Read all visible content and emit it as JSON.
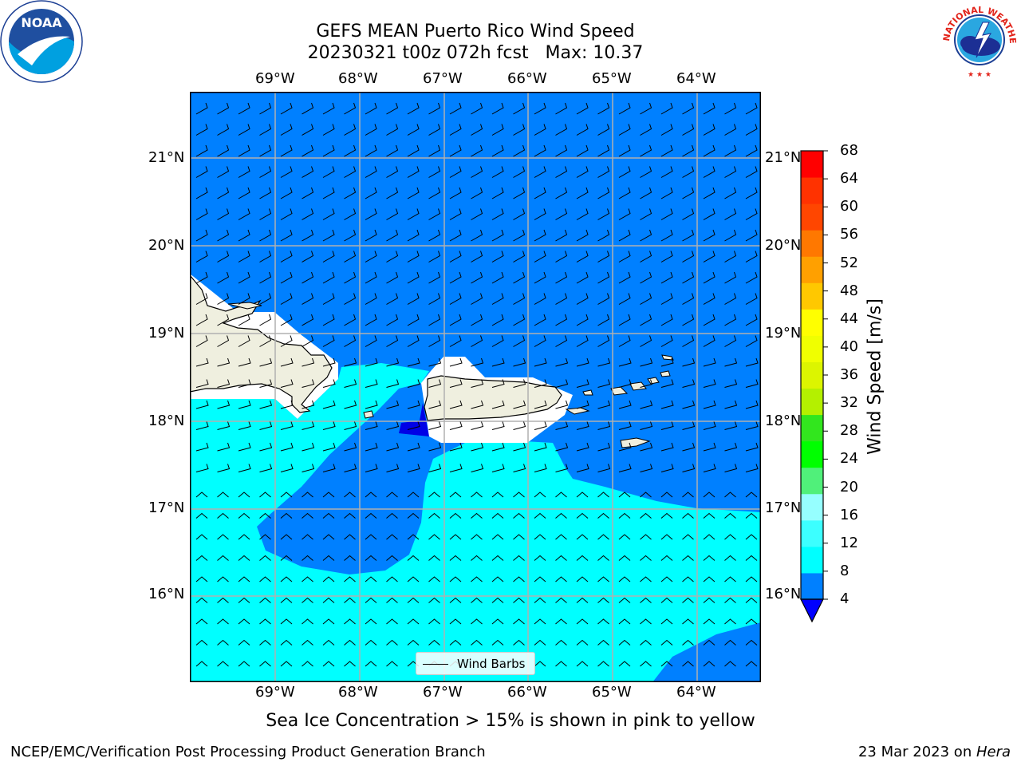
{
  "header": {
    "title_line1": "GEFS MEAN Puerto Rico Wind Speed",
    "title_line2": "20230321 t00z 072h fcst   Max: 10.37"
  },
  "logos": {
    "left": "noara-logo",
    "right": "nws-logo",
    "nws_ring_text": "NATIONAL WEATHER SERVICE"
  },
  "map": {
    "lon_ticks": [
      "69°W",
      "68°W",
      "67°W",
      "66°W",
      "65°W",
      "64°W"
    ],
    "lat_ticks": [
      "21°N",
      "20°N",
      "19°N",
      "18°N",
      "17°N",
      "16°N"
    ],
    "colors": {
      "ocean_low": "#0080ff",
      "ocean_mid": "#00ffff",
      "ocean_min": "#0000e6",
      "land": "#efefdf"
    },
    "legend_label": "Wind Barbs"
  },
  "colorbar": {
    "label": "Wind Speed [m/s]",
    "ticks": [
      "68",
      "64",
      "60",
      "56",
      "52",
      "48",
      "44",
      "40",
      "36",
      "32",
      "28",
      "24",
      "20",
      "16",
      "12",
      "8",
      "4"
    ],
    "colors": [
      "#0000ff",
      "#0080ff",
      "#00ffff",
      "#3cffff",
      "#96ffff",
      "#50f07a",
      "#00ff00",
      "#32e61e",
      "#b4f000",
      "#dcf500",
      "#f0ff00",
      "#ffff00",
      "#ffc800",
      "#ffa000",
      "#ff7800",
      "#ff4600",
      "#ff3200",
      "#ff0000"
    ]
  },
  "notes": {
    "sea_ice": "Sea Ice Concentration > 15% is shown in pink to yellow"
  },
  "footer": {
    "branch": "NCEP/EMC/Verification Post Processing Product Generation Branch",
    "date": "23 Mar 2023 on ",
    "host": "Hera"
  }
}
